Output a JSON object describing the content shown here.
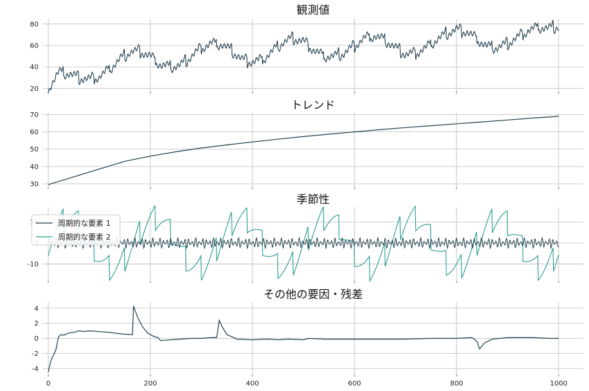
{
  "figure": {
    "background": "#ffffff"
  },
  "chart_data": [
    {
      "type": "line",
      "id": "observed",
      "title": "観測値",
      "xlim": [
        0,
        1000
      ],
      "ylim": [
        17,
        85
      ],
      "yticks": [
        20,
        40,
        60,
        80
      ],
      "xtick_values": [
        0,
        200,
        400,
        600,
        800,
        1000
      ],
      "show_xticklabels": false,
      "grid": true,
      "series": [
        {
          "color": "#233f4f",
          "x": [
            0,
            20,
            40,
            60,
            80,
            100,
            120,
            140,
            160,
            180,
            200,
            220,
            240,
            260,
            280,
            300,
            320,
            340,
            360,
            380,
            400,
            420,
            440,
            460,
            480,
            500,
            520,
            540,
            560,
            580,
            600,
            620,
            640,
            660,
            680,
            700,
            720,
            740,
            760,
            780,
            800,
            820,
            840,
            860,
            880,
            900,
            920,
            940,
            960,
            980,
            1000
          ],
          "y": [
            20,
            35,
            34,
            30,
            29,
            31,
            38,
            47,
            54,
            55,
            50,
            42,
            40,
            42,
            50,
            58,
            62,
            61,
            55,
            47,
            45,
            47,
            55,
            63,
            67,
            64,
            56,
            50,
            50,
            53,
            60,
            67,
            69,
            65,
            58,
            52,
            53,
            58,
            65,
            71,
            75,
            73,
            66,
            59,
            58,
            62,
            68,
            74,
            77,
            76,
            78
          ]
        }
      ]
    },
    {
      "type": "line",
      "id": "trend",
      "title": "トレンド",
      "xlim": [
        0,
        1000
      ],
      "ylim": [
        28,
        71
      ],
      "yticks": [
        30,
        40,
        50,
        60,
        70
      ],
      "xtick_values": [
        0,
        200,
        400,
        600,
        800,
        1000
      ],
      "show_xticklabels": false,
      "grid": true,
      "series": [
        {
          "color": "#233f4f",
          "x": [
            0,
            50,
            100,
            150,
            200,
            250,
            300,
            350,
            400,
            450,
            500,
            550,
            600,
            650,
            700,
            750,
            800,
            850,
            900,
            950,
            1000
          ],
          "y": [
            29.5,
            34,
            38.5,
            43,
            46,
            48.5,
            50.7,
            52.5,
            54.2,
            55.8,
            57.3,
            58.7,
            60,
            61.3,
            62.5,
            63.6,
            64.7,
            65.8,
            66.9,
            68,
            69
          ]
        }
      ]
    },
    {
      "type": "line",
      "id": "seasonal",
      "title": "季節性",
      "xlim": [
        0,
        1000
      ],
      "ylim": [
        -18,
        17
      ],
      "yticks": [
        -10,
        0,
        10
      ],
      "xtick_values": [
        0,
        200,
        400,
        600,
        800,
        1000
      ],
      "show_xticklabels": false,
      "grid": true,
      "legend": "upper left",
      "series": [
        {
          "name": "周期的な要素 1",
          "color": "#233f4f",
          "period": 7,
          "amplitude": 2.5
        },
        {
          "name": "周期的な要素 2",
          "color": "#2a9d8f",
          "period": 30,
          "long_period": 168,
          "amplitude": 12,
          "sawtooth": 6
        }
      ]
    },
    {
      "type": "line",
      "id": "residual",
      "title": "その他の要因・残差",
      "xlim": [
        0,
        1000
      ],
      "ylim": [
        -4.8,
        4.8
      ],
      "yticks": [
        -4,
        -2,
        0,
        2,
        4
      ],
      "xtick_values": [
        0,
        200,
        400,
        600,
        800,
        1000
      ],
      "show_xticklabels": true,
      "xticks": [
        "0",
        "200",
        "400",
        "600",
        "800",
        "1000"
      ],
      "grid": true,
      "series": [
        {
          "color": "#233f4f",
          "x": [
            0,
            5,
            15,
            20,
            25,
            30,
            40,
            50,
            60,
            70,
            80,
            100,
            120,
            140,
            160,
            165,
            167,
            175,
            185,
            195,
            205,
            215,
            220,
            240,
            260,
            280,
            300,
            320,
            330,
            335,
            340,
            350,
            370,
            400,
            430,
            450,
            470,
            500,
            510,
            540,
            560,
            600,
            650,
            700,
            750,
            800,
            830,
            840,
            845,
            855,
            870,
            900,
            950,
            980,
            1000
          ],
          "y": [
            -4.5,
            -3.0,
            -1.5,
            0.2,
            0.5,
            0.4,
            0.7,
            0.8,
            1.0,
            0.9,
            1.0,
            0.9,
            0.8,
            0.6,
            0.5,
            0.5,
            4.3,
            2.8,
            1.5,
            0.7,
            0.3,
            0.1,
            -0.3,
            -0.2,
            -0.1,
            0.0,
            0.0,
            0.1,
            0.1,
            2.4,
            1.6,
            0.5,
            -0.1,
            -0.2,
            -0.1,
            -0.2,
            -0.1,
            -0.2,
            0.0,
            -0.1,
            -0.1,
            -0.1,
            -0.1,
            -0.1,
            0.0,
            0.0,
            0.1,
            -0.4,
            -1.4,
            -0.6,
            -0.1,
            0.1,
            0.1,
            0.0,
            0.0
          ]
        }
      ]
    }
  ]
}
